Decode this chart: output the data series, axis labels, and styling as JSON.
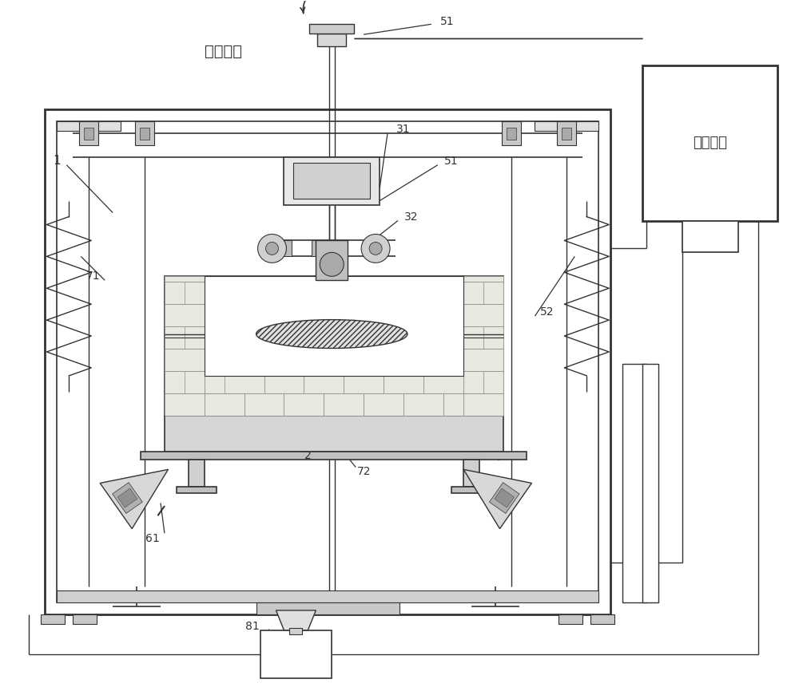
{
  "bg": "#ffffff",
  "lc": "#333333",
  "fig_w": 10.0,
  "fig_h": 8.71,
  "labels": {
    "dong_li": "动力输入",
    "kong_zhi": "控制系统",
    "1": "1",
    "2": "2",
    "31": "31",
    "32": "32",
    "51a": "51",
    "51b": "51",
    "52": "52",
    "61": "61",
    "71": "71",
    "72": "72",
    "81": "81"
  }
}
